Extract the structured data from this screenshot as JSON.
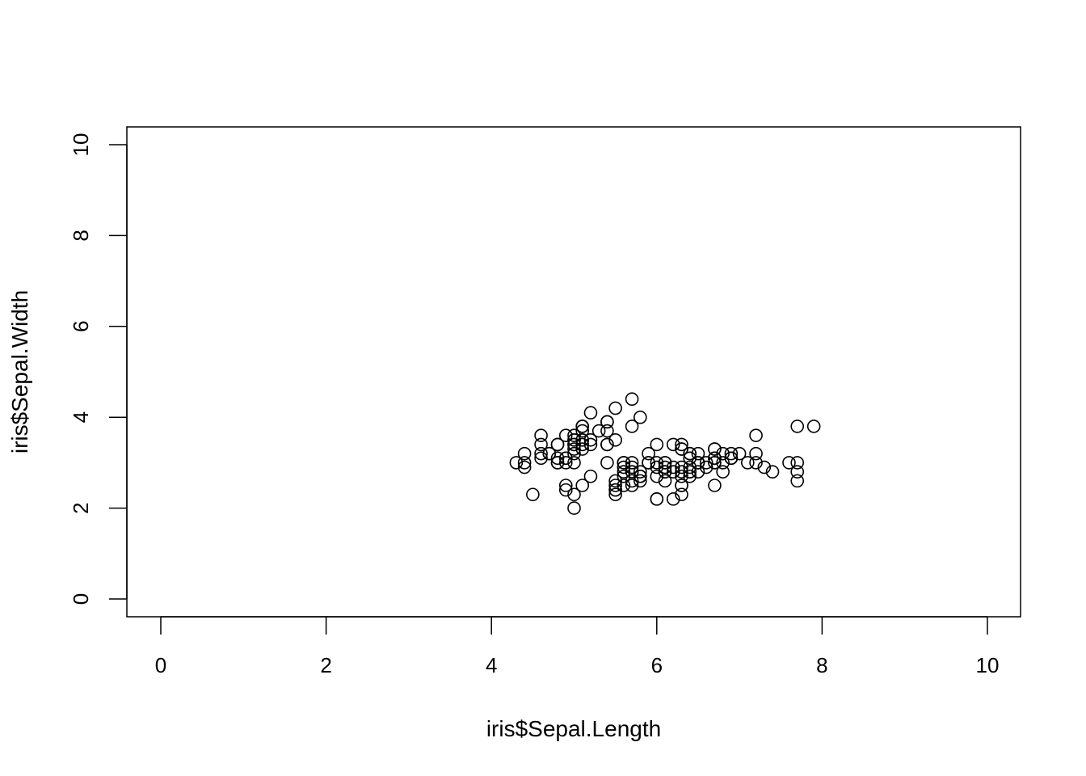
{
  "chart_data": {
    "type": "scatter",
    "title": "",
    "xlabel": "iris$Sepal.Length",
    "ylabel": "iris$Sepal.Width",
    "xlim": [
      0,
      10
    ],
    "ylim": [
      0,
      10
    ],
    "grid": false,
    "x_ticks": [
      "0",
      "2",
      "4",
      "6",
      "8",
      "10"
    ],
    "y_ticks": [
      "0",
      "2",
      "4",
      "6",
      "8",
      "10"
    ],
    "marker": "open-circle",
    "color": "#000000",
    "x": [
      5.1,
      4.9,
      4.7,
      4.6,
      5.0,
      5.4,
      4.6,
      5.0,
      4.4,
      4.9,
      5.4,
      4.8,
      4.8,
      4.3,
      5.8,
      5.7,
      5.4,
      5.1,
      5.7,
      5.1,
      5.4,
      5.1,
      4.6,
      5.1,
      4.8,
      5.0,
      5.0,
      5.2,
      5.2,
      4.7,
      4.8,
      5.4,
      5.2,
      5.5,
      4.9,
      5.0,
      5.5,
      4.9,
      4.4,
      5.1,
      5.0,
      4.5,
      4.4,
      5.0,
      5.1,
      4.8,
      5.1,
      4.6,
      5.3,
      5.0,
      7.0,
      6.4,
      6.9,
      5.5,
      6.5,
      5.7,
      6.3,
      4.9,
      6.6,
      5.2,
      5.0,
      5.9,
      6.0,
      6.1,
      5.6,
      6.7,
      5.6,
      5.8,
      6.2,
      5.6,
      5.9,
      6.1,
      6.3,
      6.1,
      6.4,
      6.6,
      6.8,
      6.7,
      6.0,
      5.7,
      5.5,
      5.5,
      5.8,
      6.0,
      5.4,
      6.0,
      6.7,
      6.3,
      5.6,
      5.5,
      5.5,
      6.1,
      5.8,
      5.0,
      5.6,
      5.7,
      5.7,
      6.2,
      5.1,
      5.7,
      6.3,
      5.8,
      7.1,
      6.3,
      6.5,
      7.6,
      4.9,
      7.3,
      6.7,
      7.2,
      6.5,
      6.4,
      6.8,
      5.7,
      5.8,
      6.4,
      6.5,
      7.7,
      7.7,
      6.0,
      6.9,
      5.6,
      7.7,
      6.3,
      6.7,
      7.2,
      6.2,
      6.1,
      6.4,
      7.2,
      7.4,
      7.9,
      6.4,
      6.3,
      6.1,
      7.7,
      6.3,
      6.4,
      6.0,
      6.9,
      6.7,
      6.9,
      5.8,
      6.8,
      6.7,
      6.7,
      6.3,
      6.5,
      6.2,
      5.9
    ],
    "y": [
      3.5,
      3.0,
      3.2,
      3.1,
      3.6,
      3.9,
      3.4,
      3.4,
      2.9,
      3.1,
      3.7,
      3.4,
      3.0,
      3.0,
      4.0,
      4.4,
      3.9,
      3.5,
      3.8,
      3.8,
      3.4,
      3.7,
      3.6,
      3.3,
      3.4,
      3.0,
      3.4,
      3.5,
      3.4,
      3.2,
      3.1,
      3.4,
      4.1,
      4.2,
      3.1,
      3.2,
      3.5,
      3.6,
      3.0,
      3.4,
      3.5,
      2.3,
      3.2,
      3.5,
      3.8,
      3.0,
      3.8,
      3.2,
      3.7,
      3.3,
      3.2,
      3.2,
      3.1,
      2.3,
      2.8,
      2.8,
      3.3,
      2.4,
      2.9,
      2.7,
      2.0,
      3.0,
      2.2,
      2.9,
      2.9,
      3.1,
      3.0,
      2.7,
      2.2,
      2.5,
      3.2,
      2.8,
      2.5,
      2.8,
      2.9,
      3.0,
      2.8,
      3.0,
      2.9,
      2.6,
      2.4,
      2.4,
      2.7,
      2.7,
      3.0,
      3.4,
      3.1,
      2.3,
      3.0,
      2.5,
      2.6,
      3.0,
      2.6,
      2.3,
      2.7,
      3.0,
      2.9,
      2.9,
      2.5,
      2.8,
      3.3,
      2.7,
      3.0,
      2.9,
      3.0,
      3.0,
      2.5,
      2.9,
      2.5,
      3.6,
      3.2,
      2.7,
      3.0,
      2.5,
      2.8,
      3.2,
      3.0,
      3.8,
      2.6,
      2.2,
      3.2,
      2.8,
      2.8,
      2.7,
      3.3,
      3.2,
      2.8,
      3.0,
      2.8,
      3.0,
      2.8,
      3.8,
      2.8,
      2.8,
      2.6,
      3.0,
      3.4,
      3.1,
      3.0,
      3.1,
      3.1,
      3.1,
      2.7,
      3.2,
      3.3,
      3.0,
      2.5,
      3.0,
      3.4,
      3.0
    ]
  }
}
